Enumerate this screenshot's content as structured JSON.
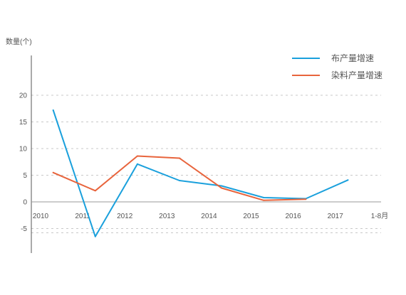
{
  "chart_data": {
    "type": "line",
    "title": "",
    "ylabel": "数量(个)",
    "xlabel": "",
    "categories": [
      "2010",
      "2011",
      "2012",
      "2013",
      "2014",
      "2015",
      "2016",
      "2017",
      "1-8月"
    ],
    "ylim": [
      -10,
      20
    ],
    "yticks": [
      20,
      15,
      10,
      5,
      0,
      -5
    ],
    "grid": true,
    "legend_position": "top-right",
    "series": [
      {
        "name": "布产量增速",
        "color": "#1aa0dc",
        "x": [
          2010.3,
          2011.3,
          2012.3,
          2013.3,
          2014.3,
          2015.3,
          2016.3,
          2017.3
        ],
        "values": [
          17.2,
          -6.5,
          7.1,
          4.0,
          3.0,
          0.8,
          0.6,
          4.1
        ]
      },
      {
        "name": "染料产量增速",
        "color": "#e8643c",
        "x": [
          2010.3,
          2011.3,
          2012.3,
          2013.3,
          2014.3,
          2015.3,
          2016.3
        ],
        "values": [
          5.5,
          2.1,
          8.6,
          8.2,
          2.6,
          0.3,
          0.5
        ]
      }
    ]
  }
}
